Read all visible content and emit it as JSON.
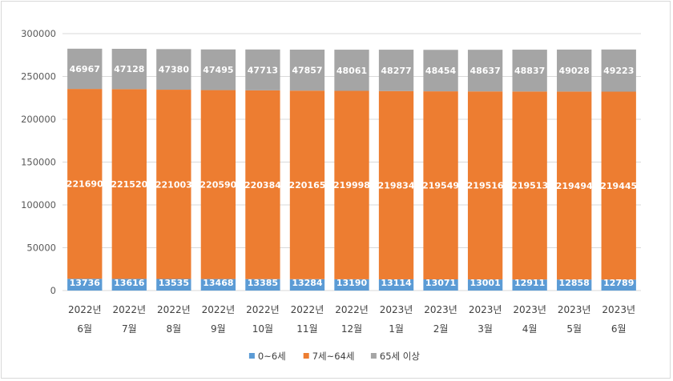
{
  "chart_data": {
    "type": "bar",
    "stacked": true,
    "categories": [
      [
        "2022년",
        "6월"
      ],
      [
        "2022년",
        "7월"
      ],
      [
        "2022년",
        "8월"
      ],
      [
        "2022년",
        "9월"
      ],
      [
        "2022년",
        "10월"
      ],
      [
        "2022년",
        "11월"
      ],
      [
        "2022년",
        "12월"
      ],
      [
        "2023년",
        "1월"
      ],
      [
        "2023년",
        "2월"
      ],
      [
        "2023년",
        "3월"
      ],
      [
        "2023년",
        "4월"
      ],
      [
        "2023년",
        "5월"
      ],
      [
        "2023년",
        "6월"
      ]
    ],
    "series": [
      {
        "name": "0~6세",
        "color": "#5b9bd5",
        "values": [
          13736,
          13616,
          13535,
          13468,
          13385,
          13284,
          13190,
          13114,
          13071,
          13001,
          12911,
          12858,
          12789
        ]
      },
      {
        "name": "7세~64세",
        "color": "#ed7d31",
        "values": [
          221690,
          221520,
          221003,
          220590,
          220384,
          220165,
          219998,
          219834,
          219549,
          219516,
          219513,
          219494,
          219445
        ]
      },
      {
        "name": "65세 이상",
        "color": "#a5a5a5",
        "values": [
          46967,
          47128,
          47380,
          47495,
          47713,
          47857,
          48061,
          48277,
          48454,
          48637,
          48837,
          49028,
          49223
        ]
      }
    ],
    "ylim": [
      0,
      300000
    ],
    "yticks": [
      0,
      50000,
      100000,
      150000,
      200000,
      250000,
      300000
    ],
    "grid": true,
    "legend": "bottom",
    "data_labels": true
  }
}
